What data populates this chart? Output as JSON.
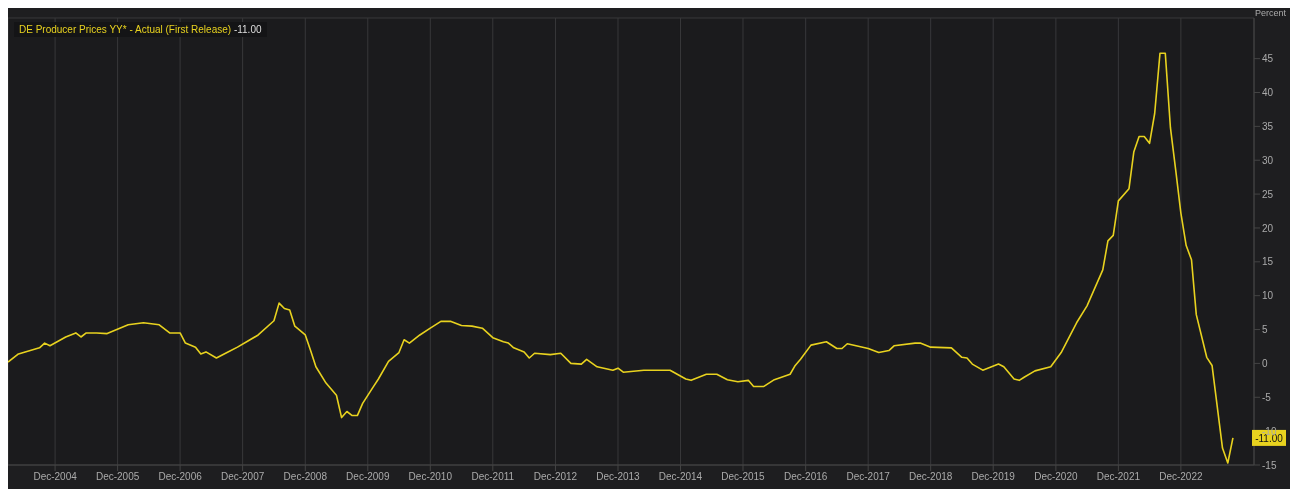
{
  "chart_data": {
    "type": "line",
    "ylabel": "Percent",
    "legend": "top left",
    "grid": true,
    "marker": "none",
    "line_style": "solid",
    "x": [
      "2004-03",
      "2004-05",
      "2004-09",
      "2004-10",
      "2004-11",
      "2005-02",
      "2005-04",
      "2005-05",
      "2005-06",
      "2005-08",
      "2005-10",
      "2006-02",
      "2006-05",
      "2006-08",
      "2006-10",
      "2006-12",
      "2007-01",
      "2007-03",
      "2007-04",
      "2007-05",
      "2007-07",
      "2007-09",
      "2007-11",
      "2008-01",
      "2008-03",
      "2008-06",
      "2008-07",
      "2008-08",
      "2008-09",
      "2008-10",
      "2008-12",
      "2009-01",
      "2009-02",
      "2009-04",
      "2009-06",
      "2009-07",
      "2009-08",
      "2009-09",
      "2009-10",
      "2009-11",
      "2010-01",
      "2010-02",
      "2010-04",
      "2010-06",
      "2010-07",
      "2010-08",
      "2010-10",
      "2010-12",
      "2011-02",
      "2011-04",
      "2011-06",
      "2011-08",
      "2011-10",
      "2011-12",
      "2012-02",
      "2012-03",
      "2012-04",
      "2012-06",
      "2012-07",
      "2012-08",
      "2012-11",
      "2013-01",
      "2013-03",
      "2013-05",
      "2013-06",
      "2013-08",
      "2013-11",
      "2013-12",
      "2014-01",
      "2014-05",
      "2014-10",
      "2015-01",
      "2015-02",
      "2015-05",
      "2015-07",
      "2015-09",
      "2015-11",
      "2016-01",
      "2016-02",
      "2016-04",
      "2016-06",
      "2016-09",
      "2016-10",
      "2016-11",
      "2017-01",
      "2017-04",
      "2017-06",
      "2017-07",
      "2017-08",
      "2017-12",
      "2018-02",
      "2018-04",
      "2018-05",
      "2018-09",
      "2018-10",
      "2018-12",
      "2019-04",
      "2019-06",
      "2019-07",
      "2019-08",
      "2019-10",
      "2020-01",
      "2020-02",
      "2020-04",
      "2020-05",
      "2020-06",
      "2020-08",
      "2020-11",
      "2021-01",
      "2021-04",
      "2021-06",
      "2021-09",
      "2021-10",
      "2021-11",
      "2021-12",
      "2022-02",
      "2022-03",
      "2022-04",
      "2022-05",
      "2022-06",
      "2022-07",
      "2022-08",
      "2022-09",
      "2022-10",
      "2022-11",
      "2022-12",
      "2023-01",
      "2023-02",
      "2023-03",
      "2023-05",
      "2023-06",
      "2023-08",
      "2023-09",
      "2023-10"
    ],
    "series": [
      {
        "name": "DE Producer Prices YY* - Actual (First Release)",
        "color": "#e8d21f",
        "values": [
          0.2,
          1.4,
          2.3,
          3.0,
          2.6,
          3.9,
          4.5,
          3.9,
          4.5,
          4.5,
          4.4,
          5.7,
          6.0,
          5.7,
          4.5,
          4.5,
          3.0,
          2.4,
          1.4,
          1.7,
          0.8,
          1.6,
          2.4,
          3.3,
          4.2,
          6.3,
          8.9,
          8.1,
          7.9,
          5.5,
          4.2,
          1.9,
          -0.5,
          -2.9,
          -4.7,
          -8.0,
          -7.1,
          -7.7,
          -7.7,
          -5.9,
          -3.5,
          -2.3,
          0.3,
          1.6,
          3.5,
          3.0,
          4.2,
          5.2,
          6.2,
          6.2,
          5.6,
          5.5,
          5.2,
          3.8,
          3.2,
          3.0,
          2.3,
          1.7,
          0.8,
          1.5,
          1.3,
          1.5,
          0.0,
          -0.1,
          0.6,
          -0.5,
          -1.0,
          -0.7,
          -1.3,
          -1.0,
          -1.0,
          -2.3,
          -2.5,
          -1.6,
          -1.6,
          -2.4,
          -2.7,
          -2.5,
          -3.4,
          -3.4,
          -2.4,
          -1.6,
          -0.3,
          0.6,
          2.7,
          3.2,
          2.2,
          2.2,
          2.9,
          2.2,
          1.6,
          1.9,
          2.6,
          3.0,
          3.0,
          2.4,
          2.3,
          0.9,
          0.8,
          -0.1,
          -1.0,
          -0.1,
          -0.5,
          -2.3,
          -2.5,
          -2.0,
          -1.1,
          -0.5,
          1.6,
          6.0,
          8.5,
          13.8,
          18.1,
          18.9,
          24.0,
          25.8,
          31.2,
          33.5,
          33.5,
          32.5,
          36.9,
          45.8,
          45.8,
          34.8,
          28.5,
          22.2,
          17.4,
          15.3,
          7.2,
          0.9,
          -0.3,
          -12.5,
          -14.7,
          -11.0
        ]
      }
    ],
    "xlim": [
      "2004-03",
      "2024-02"
    ],
    "xticks": [
      {
        "value": "2004-12",
        "label": "Dec-2004"
      },
      {
        "value": "2005-12",
        "label": "Dec-2005"
      },
      {
        "value": "2006-12",
        "label": "Dec-2006"
      },
      {
        "value": "2007-12",
        "label": "Dec-2007"
      },
      {
        "value": "2008-12",
        "label": "Dec-2008"
      },
      {
        "value": "2009-12",
        "label": "Dec-2009"
      },
      {
        "value": "2010-12",
        "label": "Dec-2010"
      },
      {
        "value": "2011-12",
        "label": "Dec-2011"
      },
      {
        "value": "2012-12",
        "label": "Dec-2012"
      },
      {
        "value": "2013-12",
        "label": "Dec-2013"
      },
      {
        "value": "2014-12",
        "label": "Dec-2014"
      },
      {
        "value": "2015-12",
        "label": "Dec-2015"
      },
      {
        "value": "2016-12",
        "label": "Dec-2016"
      },
      {
        "value": "2017-12",
        "label": "Dec-2017"
      },
      {
        "value": "2018-12",
        "label": "Dec-2018"
      },
      {
        "value": "2019-12",
        "label": "Dec-2019"
      },
      {
        "value": "2020-12",
        "label": "Dec-2020"
      },
      {
        "value": "2021-12",
        "label": "Dec-2021"
      },
      {
        "value": "2022-12",
        "label": "Dec-2022"
      }
    ],
    "ylim": [
      -15,
      51
    ],
    "yticks": [
      -15,
      -10,
      -5,
      0,
      5,
      10,
      15,
      20,
      25,
      30,
      35,
      40,
      45
    ],
    "annotations": [
      {
        "text": "-11.00",
        "x": "2023-10",
        "y": -11
      }
    ]
  }
}
